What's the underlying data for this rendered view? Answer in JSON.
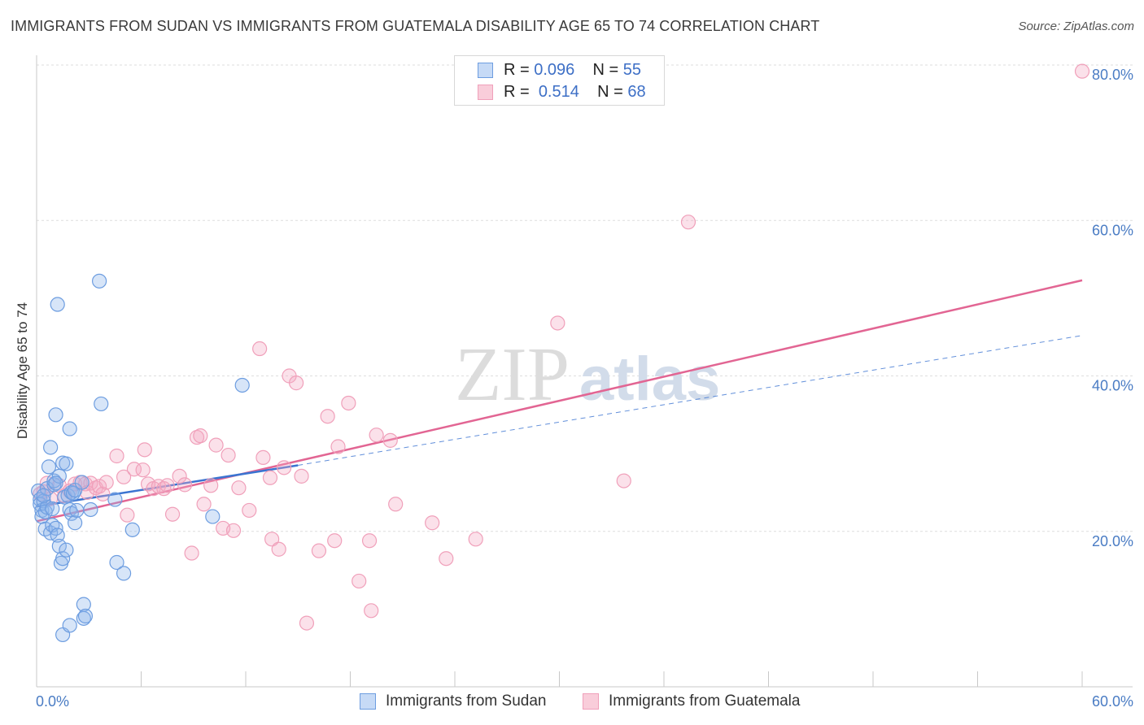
{
  "chart_data": {
    "type": "scatter",
    "title": "IMMIGRANTS FROM SUDAN VS IMMIGRANTS FROM GUATEMALA DISABILITY AGE 65 TO 74 CORRELATION CHART",
    "source": "Source: ZipAtlas.com",
    "xlabel": "",
    "ylabel": "Disability Age 65 to 74",
    "xlim": [
      0,
      60
    ],
    "ylim": [
      0,
      80
    ],
    "x_tick_labels": [
      "0.0%",
      "60.0%"
    ],
    "y_ticks": [
      20,
      40,
      60,
      80
    ],
    "y_tick_labels": [
      "20.0%",
      "40.0%",
      "60.0%",
      "80.0%"
    ],
    "grid": true,
    "watermark": "ZIPatlas",
    "colors": {
      "sudan": "#6d9de0",
      "guatemala": "#f0a0ba",
      "sudan_line": "#3b74d1",
      "guatemala_line": "#e26593"
    },
    "legend": [
      {
        "r_label": "R =",
        "r_value": "0.096",
        "n_label": "N =",
        "n_value": "55"
      },
      {
        "r_label": "R =",
        "r_value": "0.514",
        "n_label": "N =",
        "n_value": "68"
      }
    ],
    "series": [
      {
        "name": "Immigrants from Sudan",
        "trend": {
          "x": [
            0,
            15
          ],
          "y": [
            23.2,
            28.5
          ],
          "dashed_to_x": 60,
          "dashed_to_y": 45.2
        },
        "points": [
          [
            0.1,
            25.2
          ],
          [
            0.2,
            24.1
          ],
          [
            0.2,
            23.5
          ],
          [
            0.3,
            22.7
          ],
          [
            0.3,
            21.9
          ],
          [
            0.4,
            23.9
          ],
          [
            0.5,
            22.5
          ],
          [
            0.5,
            20.3
          ],
          [
            0.6,
            25.5
          ],
          [
            0.6,
            23.1
          ],
          [
            0.7,
            28.3
          ],
          [
            0.8,
            30.8
          ],
          [
            0.8,
            19.8
          ],
          [
            0.9,
            22.9
          ],
          [
            0.9,
            20.8
          ],
          [
            1.0,
            26.0
          ],
          [
            1.0,
            26.5
          ],
          [
            1.1,
            35.0
          ],
          [
            1.1,
            20.4
          ],
          [
            1.2,
            49.2
          ],
          [
            1.2,
            19.5
          ],
          [
            1.3,
            18.1
          ],
          [
            1.3,
            27.1
          ],
          [
            1.4,
            15.9
          ],
          [
            1.5,
            16.5
          ],
          [
            1.5,
            28.8
          ],
          [
            1.5,
            6.7
          ],
          [
            1.6,
            24.4
          ],
          [
            1.7,
            17.6
          ],
          [
            1.7,
            28.7
          ],
          [
            1.8,
            24.6
          ],
          [
            1.9,
            33.2
          ],
          [
            1.9,
            7.9
          ],
          [
            1.9,
            22.8
          ],
          [
            2.0,
            22.3
          ],
          [
            2.0,
            25.0
          ],
          [
            2.1,
            24.9
          ],
          [
            2.2,
            21.1
          ],
          [
            2.2,
            25.3
          ],
          [
            2.3,
            22.7
          ],
          [
            2.6,
            26.3
          ],
          [
            2.7,
            10.6
          ],
          [
            2.7,
            8.8
          ],
          [
            2.8,
            9.1
          ],
          [
            3.1,
            22.8
          ],
          [
            3.6,
            52.2
          ],
          [
            3.7,
            36.4
          ],
          [
            4.5,
            24.1
          ],
          [
            4.6,
            16.0
          ],
          [
            5.0,
            14.6
          ],
          [
            5.5,
            20.2
          ],
          [
            10.1,
            21.9
          ],
          [
            11.8,
            38.8
          ],
          [
            0.4,
            24.6
          ],
          [
            1.1,
            26.2
          ]
        ]
      },
      {
        "name": "Immigrants from Guatemala",
        "trend": {
          "x": [
            0,
            60
          ],
          "y": [
            21.3,
            52.3
          ]
        },
        "points": [
          [
            0.2,
            24.8
          ],
          [
            0.4,
            25.1
          ],
          [
            0.6,
            26.2
          ],
          [
            0.8,
            24.2
          ],
          [
            1.3,
            25.9
          ],
          [
            1.6,
            24.6
          ],
          [
            1.9,
            25.2
          ],
          [
            2.2,
            26.1
          ],
          [
            2.5,
            26.3
          ],
          [
            2.8,
            26.1
          ],
          [
            2.9,
            25.0
          ],
          [
            3.1,
            26.2
          ],
          [
            3.4,
            25.6
          ],
          [
            3.6,
            25.8
          ],
          [
            3.8,
            24.8
          ],
          [
            4.0,
            26.3
          ],
          [
            4.6,
            29.7
          ],
          [
            5.0,
            27.0
          ],
          [
            5.2,
            22.1
          ],
          [
            5.6,
            28.0
          ],
          [
            6.1,
            27.9
          ],
          [
            6.2,
            30.5
          ],
          [
            6.4,
            26.1
          ],
          [
            6.7,
            25.5
          ],
          [
            7.0,
            25.8
          ],
          [
            7.3,
            25.5
          ],
          [
            7.5,
            25.9
          ],
          [
            7.8,
            22.2
          ],
          [
            8.2,
            27.1
          ],
          [
            8.5,
            26.0
          ],
          [
            8.9,
            17.2
          ],
          [
            9.2,
            32.1
          ],
          [
            9.4,
            32.3
          ],
          [
            9.6,
            23.5
          ],
          [
            10.0,
            25.9
          ],
          [
            10.3,
            31.1
          ],
          [
            10.7,
            20.4
          ],
          [
            11.0,
            29.8
          ],
          [
            11.3,
            20.1
          ],
          [
            11.6,
            25.6
          ],
          [
            12.2,
            22.7
          ],
          [
            12.8,
            43.5
          ],
          [
            13.0,
            29.5
          ],
          [
            13.4,
            26.9
          ],
          [
            13.5,
            19.0
          ],
          [
            13.9,
            17.7
          ],
          [
            14.2,
            28.2
          ],
          [
            14.5,
            40.0
          ],
          [
            14.9,
            39.1
          ],
          [
            15.2,
            27.1
          ],
          [
            15.5,
            8.2
          ],
          [
            16.2,
            17.5
          ],
          [
            16.7,
            34.8
          ],
          [
            17.1,
            18.8
          ],
          [
            17.3,
            30.9
          ],
          [
            17.9,
            36.5
          ],
          [
            18.5,
            13.6
          ],
          [
            19.1,
            18.8
          ],
          [
            19.2,
            9.8
          ],
          [
            19.5,
            32.4
          ],
          [
            20.3,
            31.7
          ],
          [
            20.6,
            23.5
          ],
          [
            22.7,
            21.1
          ],
          [
            23.5,
            16.5
          ],
          [
            25.2,
            19.0
          ],
          [
            29.9,
            46.8
          ],
          [
            33.7,
            26.5
          ],
          [
            37.4,
            59.8
          ],
          [
            60.0,
            79.2
          ]
        ]
      }
    ]
  }
}
